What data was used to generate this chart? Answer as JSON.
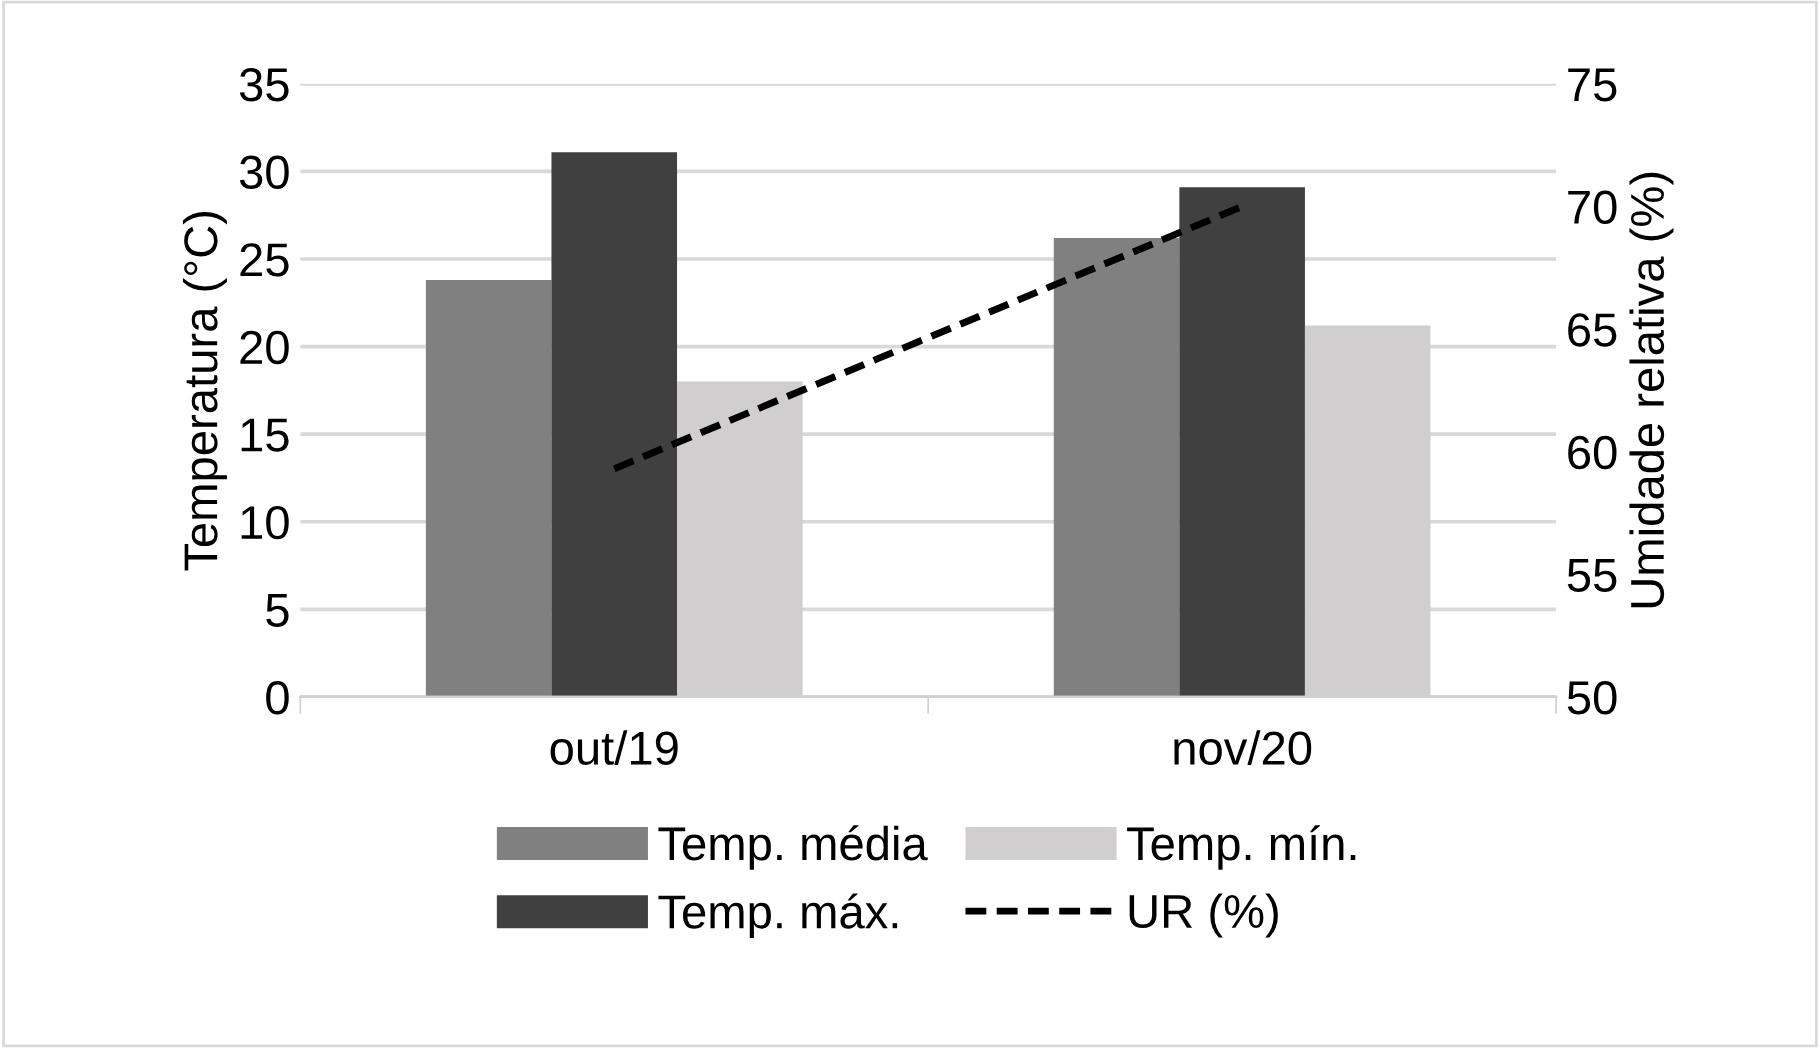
{
  "chart_data": {
    "type": "bar",
    "categories": [
      "out/19",
      "nov/20"
    ],
    "ylabel": "Temperatura (°C)",
    "y2label": "Umidade relativa (%)",
    "ylim": [
      0,
      35
    ],
    "yticks": [
      0,
      5,
      10,
      15,
      20,
      25,
      30,
      35
    ],
    "y2lim": [
      50,
      75
    ],
    "y2ticks": [
      50,
      55,
      60,
      65,
      70,
      75
    ],
    "grid": "y",
    "legend": "bottom",
    "series": [
      {
        "name": "Temp. média",
        "color": "#808080",
        "values": [
          23.8,
          26.2
        ]
      },
      {
        "name": "Temp. máx.",
        "color": "#404040",
        "values": [
          31.1,
          29.1
        ]
      },
      {
        "name": "Temp. mín.",
        "color": "#d0cece",
        "values": [
          18.0,
          21.2
        ]
      },
      {
        "name": "UR (%)",
        "type": "line",
        "axis": "y2",
        "color": "#000000",
        "line_style": "dashed",
        "values": [
          59.3,
          70.0
        ]
      }
    ]
  }
}
